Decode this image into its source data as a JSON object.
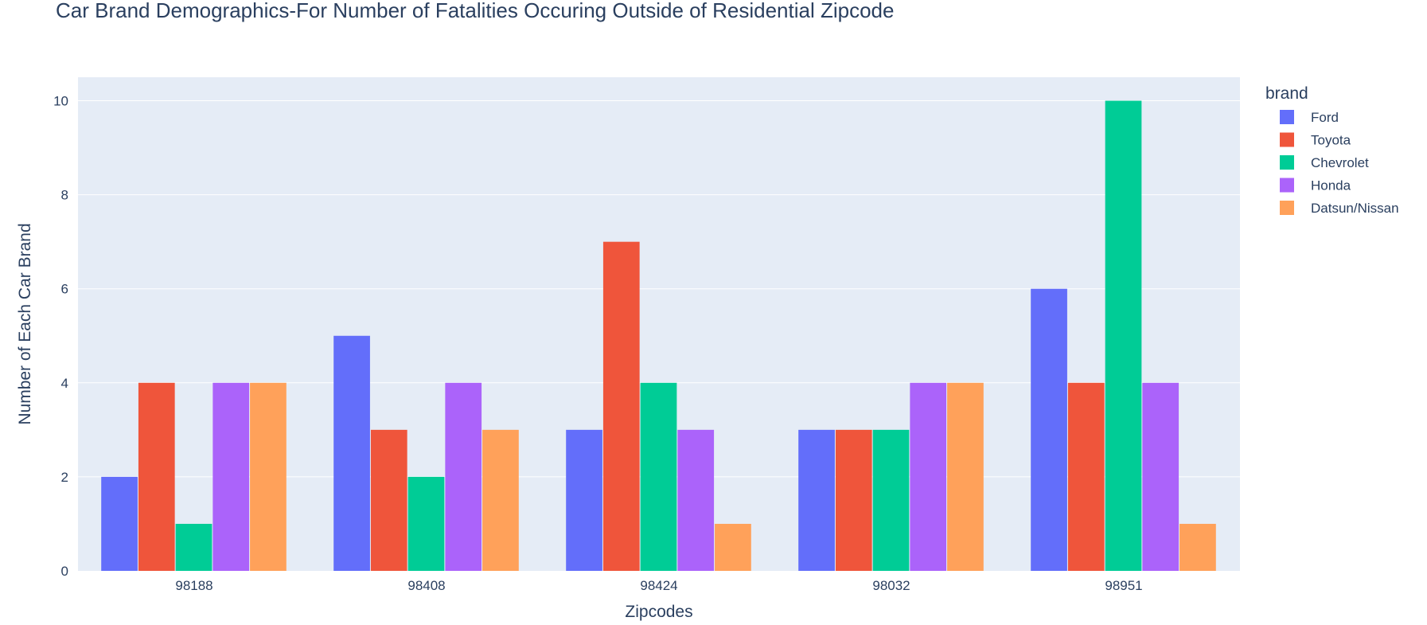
{
  "chart_data": {
    "type": "bar",
    "title": "Car Brand Demographics-For Number of Fatalities Occuring Outside of Residential Zipcode",
    "xlabel": "Zipcodes",
    "ylabel": "Number of Each Car Brand",
    "categories": [
      "98188",
      "98408",
      "98424",
      "98032",
      "98951"
    ],
    "ylim": [
      0,
      10.5
    ],
    "yticks": [
      0,
      2,
      4,
      6,
      8,
      10
    ],
    "grid": true,
    "legend": {
      "title": "brand",
      "position": "right"
    },
    "series": [
      {
        "name": "Ford",
        "color": "#636efa",
        "values": [
          2,
          5,
          3,
          3,
          6
        ]
      },
      {
        "name": "Toyota",
        "color": "#ef553b",
        "values": [
          4,
          3,
          7,
          3,
          4
        ]
      },
      {
        "name": "Chevrolet",
        "color": "#00cc96",
        "values": [
          1,
          2,
          4,
          3,
          10
        ]
      },
      {
        "name": "Honda",
        "color": "#ab63fa",
        "values": [
          4,
          4,
          3,
          4,
          4
        ]
      },
      {
        "name": "Datsun/Nissan",
        "color": "#ffa15a",
        "values": [
          4,
          3,
          1,
          4,
          1
        ]
      }
    ],
    "colors": {
      "plot_background": "#e5ecf6",
      "gridline": "#ffffff",
      "text": "#2a3f5f"
    }
  }
}
